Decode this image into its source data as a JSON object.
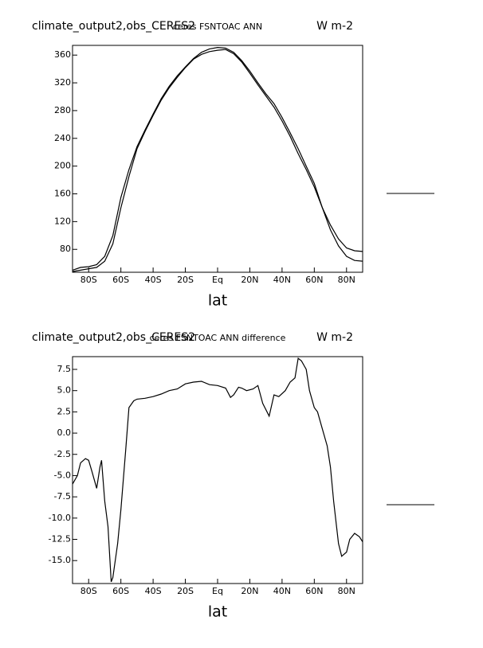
{
  "chart_data": [
    {
      "type": "line",
      "title": "climate_output2,obs_CERES2",
      "subtitle": "ceres FSNTOAC ANN",
      "units": "W m-2",
      "x_label": "lat",
      "x": [
        -90,
        -85,
        -80,
        -75,
        -70,
        -65,
        -60,
        -55,
        -50,
        -45,
        -40,
        -35,
        -30,
        -25,
        -20,
        -15,
        -10,
        -5,
        0,
        5,
        10,
        15,
        20,
        25,
        30,
        35,
        40,
        45,
        50,
        55,
        60,
        65,
        70,
        75,
        80,
        85,
        90
      ],
      "series": [
        {
          "color": "#000000",
          "values": [
            50,
            54,
            55,
            58,
            70,
            100,
            155,
            195,
            228,
            252,
            275,
            297,
            315,
            330,
            343,
            355,
            364,
            369,
            371,
            370,
            364,
            352,
            337,
            320,
            304,
            290,
            270,
            248,
            225,
            200,
            175,
            140,
            115,
            95,
            82,
            78,
            77
          ]
        },
        {
          "color": "#000000",
          "values": [
            48,
            50,
            52,
            54,
            63,
            88,
            140,
            185,
            225,
            250,
            273,
            295,
            313,
            328,
            342,
            354,
            361,
            365,
            367,
            368,
            362,
            350,
            334,
            317,
            301,
            285,
            265,
            243,
            218,
            195,
            170,
            140,
            108,
            85,
            70,
            64,
            63
          ]
        }
      ],
      "xlim": [
        -90,
        90
      ],
      "xticks": [
        {
          "value": -80,
          "label": "80S"
        },
        {
          "value": -60,
          "label": "60S"
        },
        {
          "value": -40,
          "label": "40S"
        },
        {
          "value": -20,
          "label": "20S"
        },
        {
          "value": 0,
          "label": "Eq"
        },
        {
          "value": 20,
          "label": "20N"
        },
        {
          "value": 40,
          "label": "40N"
        },
        {
          "value": 60,
          "label": "60N"
        },
        {
          "value": 80,
          "label": "80N"
        }
      ],
      "ylim": [
        47,
        374
      ],
      "yticks": [
        80,
        120,
        160,
        200,
        240,
        280,
        320,
        360
      ]
    },
    {
      "type": "line",
      "title": "climate_output2,obs_CERES2",
      "subtitle": "ceres FSNTOAC ANN difference",
      "units": "W m-2",
      "x_label": "lat",
      "x": [
        -90,
        -87,
        -85,
        -82,
        -80,
        -78,
        -75,
        -73,
        -72,
        -70,
        -68,
        -66,
        -65,
        -62,
        -60,
        -57,
        -55,
        -52,
        -50,
        -45,
        -40,
        -35,
        -30,
        -25,
        -20,
        -15,
        -10,
        -5,
        0,
        5,
        8,
        10,
        13,
        15,
        18,
        22,
        25,
        28,
        32,
        35,
        38,
        42,
        45,
        48,
        50,
        52,
        55,
        57,
        60,
        62,
        65,
        68,
        70,
        72,
        75,
        77,
        80,
        82,
        85,
        88,
        90
      ],
      "series": [
        {
          "color": "#000000",
          "values": [
            -6,
            -5,
            -3.5,
            -3,
            -3.2,
            -4.5,
            -6.5,
            -4,
            -3.2,
            -8,
            -11,
            -17.5,
            -17,
            -13,
            -9,
            -2,
            3,
            3.8,
            4,
            4.1,
            4.3,
            4.6,
            5,
            5.2,
            5.8,
            6,
            6.1,
            5.7,
            5.6,
            5.3,
            4.2,
            4.5,
            5.4,
            5.3,
            5,
            5.2,
            5.6,
            3.5,
            2,
            4.5,
            4.3,
            5,
            6,
            6.5,
            8.8,
            8.5,
            7.5,
            5,
            3,
            2.5,
            0.5,
            -1.5,
            -4,
            -8,
            -13,
            -14.5,
            -14,
            -12.5,
            -11.8,
            -12.2,
            -12.8
          ]
        }
      ],
      "xlim": [
        -90,
        90
      ],
      "xticks": [
        {
          "value": -80,
          "label": "80S"
        },
        {
          "value": -60,
          "label": "60S"
        },
        {
          "value": -40,
          "label": "40S"
        },
        {
          "value": -20,
          "label": "20S"
        },
        {
          "value": 0,
          "label": "Eq"
        },
        {
          "value": 20,
          "label": "20N"
        },
        {
          "value": 40,
          "label": "40N"
        },
        {
          "value": 60,
          "label": "60N"
        },
        {
          "value": 80,
          "label": "80N"
        }
      ],
      "ylim": [
        -17.7,
        9
      ],
      "yticks": [
        7.5,
        {
          "value": 5,
          "label": "5.0"
        },
        2.5,
        {
          "value": 0,
          "label": "0.0"
        },
        -2.5,
        {
          "value": -5,
          "label": "-5.0"
        },
        -7.5,
        {
          "value": -10,
          "label": "-10.0"
        },
        -12.5,
        {
          "value": -15,
          "label": "-15.0"
        }
      ]
    }
  ]
}
